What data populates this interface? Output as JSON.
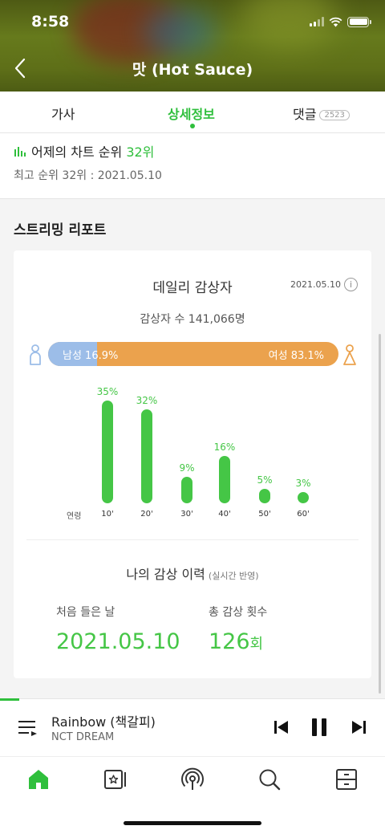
{
  "status": {
    "time": "8:58"
  },
  "header": {
    "title": "맛 (Hot Sauce)"
  },
  "tabs": [
    {
      "label": "가사"
    },
    {
      "label": "상세정보"
    },
    {
      "label": "댓글",
      "badge": "2523"
    }
  ],
  "chart_rank": {
    "prefix": "어제의 차트 순위",
    "rank": "32위",
    "best": "최고 순위 32위 : 2021.05.10"
  },
  "section_title": "스트리밍 리포트",
  "daily": {
    "title": "데일리 감상자",
    "date": "2021.05.10",
    "listeners": "감상자 수 141,066명",
    "male_label": "남성 16.9%",
    "female_label": "여성 83.1%",
    "male_pct": 16.9,
    "female_pct": 83.1
  },
  "chart_data": {
    "type": "bar",
    "xlabel": "연령",
    "categories": [
      "10'",
      "20'",
      "30'",
      "40'",
      "50'",
      "60'"
    ],
    "values": [
      35,
      32,
      9,
      16,
      5,
      3
    ],
    "value_labels": [
      "35%",
      "32%",
      "9%",
      "16%",
      "5%",
      "3%"
    ],
    "ylim": [
      0,
      35
    ]
  },
  "history": {
    "title": "나의 감상 이력",
    "note": "(실시간 반영)",
    "first_label": "처음 들은 날",
    "first_value": "2021.05.10",
    "count_label": "총 감상 횟수",
    "count_value": "126",
    "count_unit": "회"
  },
  "player": {
    "song": "Rainbow (책갈피)",
    "artist": "NCT DREAM",
    "progress": 0.05
  },
  "colors": {
    "accent": "#2fbf3c",
    "male": "#9cbde8",
    "female": "#eba24d",
    "bar": "#45c646"
  }
}
